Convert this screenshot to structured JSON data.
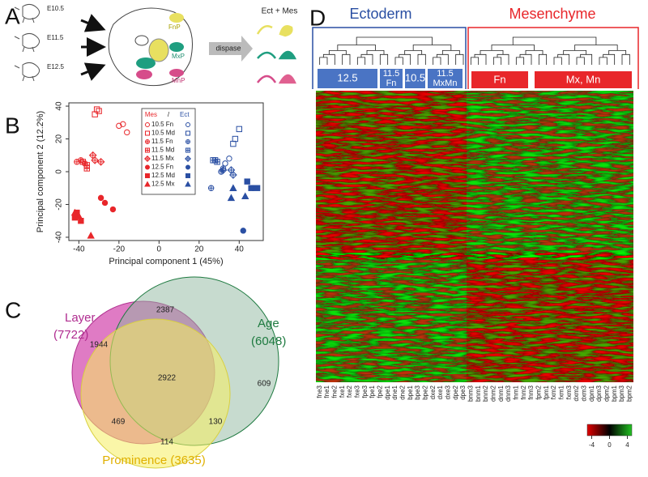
{
  "panel_a": {
    "letter": "A",
    "ages": [
      "E10.5",
      "E11.5",
      "E12.5"
    ],
    "prominences": [
      "FnP",
      "MxP",
      "MnP"
    ],
    "enzyme": "dispase",
    "result": "Ect + Mes"
  },
  "chart_data": {
    "type": "scatter",
    "letter": "B",
    "xlabel": "Principal component 1 (45%)",
    "ylabel": "Principal component 2 (12.2%)",
    "xlim": [
      -45,
      52
    ],
    "ylim": [
      -42,
      42
    ],
    "xticks": [
      -40,
      -20,
      0,
      20,
      40
    ],
    "yticks": [
      -40,
      -20,
      0,
      20,
      40
    ],
    "grid": false,
    "legend_separator": "/",
    "legend": [
      {
        "label": "10.5 Fn",
        "marker": "circle-open"
      },
      {
        "label": "10.5 Md",
        "marker": "square-open"
      },
      {
        "label": "11.5 Fn",
        "marker": "circle-plus"
      },
      {
        "label": "11.5 Md",
        "marker": "square-plus"
      },
      {
        "label": "11.5 Mx",
        "marker": "diamond-plus"
      },
      {
        "label": "12.5 Fn",
        "marker": "circle"
      },
      {
        "label": "12.5 Md",
        "marker": "square"
      },
      {
        "label": "12.5 Mx",
        "marker": "triangle"
      }
    ],
    "groups": [
      {
        "name": "Mes",
        "color": "#e8262a",
        "series": [
          {
            "x": [
              -20,
              -18,
              -16
            ],
            "values": [
              28,
              29,
              24
            ]
          },
          {
            "x": [
              -32,
              -30,
              -31
            ],
            "values": [
              35,
              37,
              38
            ]
          },
          {
            "x": [
              -41,
              -39,
              -37
            ],
            "values": [
              6,
              7,
              5
            ]
          },
          {
            "x": [
              -36,
              -36,
              -38
            ],
            "values": [
              4,
              2,
              6
            ]
          },
          {
            "x": [
              -33,
              -32,
              -29
            ],
            "values": [
              10,
              7,
              6
            ]
          },
          {
            "x": [
              -29,
              -27,
              -23
            ],
            "values": [
              -16,
              -19,
              -23
            ]
          },
          {
            "x": [
              -41,
              -39,
              -42
            ],
            "values": [
              -25,
              -30,
              -28
            ]
          },
          {
            "x": [
              -42,
              -40,
              -34
            ],
            "values": [
              -25,
              -27,
              -39
            ]
          }
        ]
      },
      {
        "name": "Ect",
        "color": "#2a4fa3",
        "series": [
          {
            "x": [
              33,
              35
            ],
            "values": [
              5,
              8
            ]
          },
          {
            "x": [
              40,
              38,
              37
            ],
            "values": [
              26,
              20,
              17
            ]
          },
          {
            "x": [
              26,
              32,
              31
            ],
            "values": [
              -10,
              2,
              0
            ]
          },
          {
            "x": [
              27,
              29,
              28
            ],
            "values": [
              7,
              6,
              7
            ]
          },
          {
            "x": [
              32,
              36,
              37
            ],
            "values": [
              1,
              1,
              -2
            ]
          },
          {
            "x": [
              42,
              47
            ],
            "values": [
              -36,
              -10
            ]
          },
          {
            "x": [
              44,
              46,
              49
            ],
            "values": [
              -6,
              -10,
              -10
            ]
          },
          {
            "x": [
              37,
              36,
              43
            ],
            "values": [
              -10,
              -16,
              -15
            ]
          }
        ]
      }
    ]
  },
  "panel_c": {
    "letter": "C",
    "sets": [
      {
        "name": "Layer",
        "total": "(7722)"
      },
      {
        "name": "Age",
        "total": "(6048)"
      },
      {
        "name": "Prominence (3635)"
      }
    ],
    "regions": {
      "layer_only": 1944,
      "layer_age": 2387,
      "age_only": 609,
      "all": 2922,
      "layer_prominence": 469,
      "age_prominence": 130,
      "prominence_only": 114
    }
  },
  "panel_d": {
    "letter": "D",
    "ectoderm": {
      "title": "Ectoderm",
      "boxes": [
        [
          "12.5"
        ],
        [
          "11.5",
          "Fn"
        ],
        [
          "10.5"
        ],
        [
          "11.5",
          "MxMn"
        ]
      ],
      "columns": [
        "fne3",
        "fne1",
        "fne2",
        "fxe1",
        "fxe2",
        "fxe3",
        "fpe3",
        "fpe1",
        "fpe2",
        "dpe1",
        "dne1",
        "dne2",
        "bpe1",
        "bpe3",
        "bpe2",
        "dxe2",
        "dxe1",
        "dxe3",
        "dpe2",
        "dpe3"
      ]
    },
    "mesenchyme": {
      "title": "Mesenchyme",
      "boxes": [
        [
          "Fn"
        ],
        [
          "Mx, Mn"
        ]
      ],
      "columns": [
        "bnm3",
        "bnm1",
        "bnm2",
        "dnm2",
        "dnm1",
        "dnm3",
        "fnm1",
        "fnm2",
        "fnm3",
        "fpm2",
        "fpm1",
        "fxm2",
        "fxm1",
        "fxm3",
        "dxm2",
        "dxm3",
        "dpm1",
        "dpm3",
        "dpm2",
        "bpm1",
        "bpm3",
        "bpm2"
      ]
    },
    "colorbar": {
      "lim": [
        -5,
        5
      ],
      "ticks": [
        -4,
        0,
        4
      ]
    }
  }
}
